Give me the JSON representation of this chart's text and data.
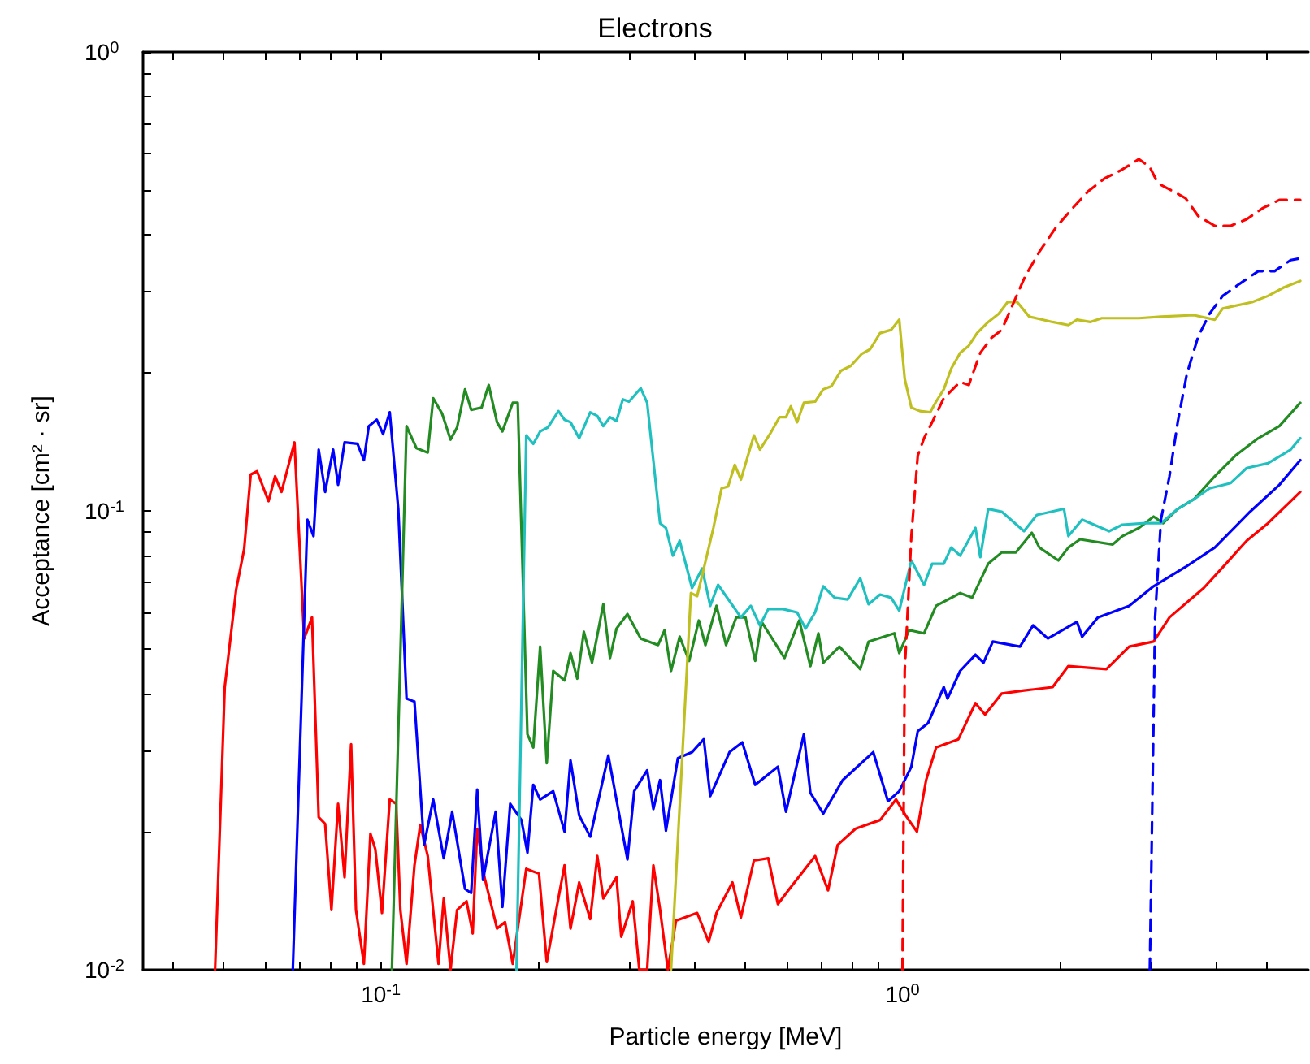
{
  "chart_data": {
    "type": "line",
    "title": "Electrons",
    "xlabel": "Particle energy [MeV]",
    "ylabel": "Acceptance [cm² · sr]",
    "log": "xy",
    "xlim": [
      0.035,
      6
    ],
    "ylim": [
      0.01,
      1
    ],
    "xticks": [
      {
        "value": 0.04,
        "label": null
      },
      {
        "value": 0.05,
        "label": null
      },
      {
        "value": 0.06,
        "label": null
      },
      {
        "value": 0.07,
        "label": null
      },
      {
        "value": 0.08,
        "label": null
      },
      {
        "value": 0.09,
        "label": null
      },
      {
        "value": 0.1,
        "label": "10$^{-1}$"
      },
      {
        "value": 0.2,
        "label": null
      },
      {
        "value": 0.3,
        "label": null
      },
      {
        "value": 0.4,
        "label": null
      },
      {
        "value": 0.5,
        "label": null
      },
      {
        "value": 0.6,
        "label": null
      },
      {
        "value": 0.7,
        "label": null
      },
      {
        "value": 0.8,
        "label": null
      },
      {
        "value": 0.9,
        "label": null
      },
      {
        "value": 1,
        "label": "10$^{0}$"
      },
      {
        "value": 2,
        "label": null
      },
      {
        "value": 3,
        "label": null
      },
      {
        "value": 4,
        "label": null
      },
      {
        "value": 5,
        "label": null
      }
    ],
    "yticks": [
      {
        "value": 0.01,
        "label": "10$^{-2}$"
      },
      {
        "value": 0.02,
        "label": null
      },
      {
        "value": 0.03,
        "label": null
      },
      {
        "value": 0.04,
        "label": null
      },
      {
        "value": 0.05,
        "label": null
      },
      {
        "value": 0.06,
        "label": null
      },
      {
        "value": 0.07,
        "label": null
      },
      {
        "value": 0.08,
        "label": null
      },
      {
        "value": 0.09,
        "label": null
      },
      {
        "value": 0.1,
        "label": "10$^{-1}$"
      },
      {
        "value": 0.2,
        "label": null
      },
      {
        "value": 0.3,
        "label": null
      },
      {
        "value": 0.4,
        "label": null
      },
      {
        "value": 0.5,
        "label": null
      },
      {
        "value": 0.6,
        "label": null
      },
      {
        "value": 0.7,
        "label": null
      },
      {
        "value": 0.8,
        "label": null
      },
      {
        "value": 0.9,
        "label": null
      },
      {
        "value": 1,
        "label": "10$^{0}$"
      }
    ],
    "series": [
      {
        "color": "#ff0000",
        "line_style": "solid",
        "x": [
          0.0481,
          0.0502,
          0.0528,
          0.0547,
          0.0563,
          0.0579,
          0.0609,
          0.0627,
          0.0645,
          0.0683,
          0.0713,
          0.0738,
          0.076,
          0.0782,
          0.0804,
          0.0828,
          0.0852,
          0.0877,
          0.0896,
          0.0928,
          0.0955,
          0.0976,
          0.1005,
          0.104,
          0.107,
          0.109,
          0.112,
          0.116,
          0.119,
          0.123,
          0.129,
          0.132,
          0.136,
          0.14,
          0.146,
          0.15,
          0.153,
          0.158,
          0.167,
          0.173,
          0.179,
          0.19,
          0.201,
          0.208,
          0.215,
          0.225,
          0.231,
          0.24,
          0.252,
          0.26,
          0.267,
          0.283,
          0.289,
          0.304,
          0.313,
          0.324,
          0.333,
          0.343,
          0.355,
          0.368,
          0.404,
          0.425,
          0.44,
          0.472,
          0.49,
          0.519,
          0.553,
          0.577,
          0.607,
          0.68,
          0.72,
          0.751,
          0.813,
          0.906,
          0.972,
          1.014,
          1.066,
          1.11,
          1.16,
          1.28,
          1.38,
          1.44,
          1.55,
          1.71,
          1.94,
          2.08,
          2.46,
          2.72,
          3.03,
          3.25,
          3.78,
          4.17,
          4.57,
          5.02,
          5.55,
          5.79
        ],
        "values": [
          0.01,
          0.0413,
          0.0674,
          0.0826,
          0.12,
          0.122,
          0.105,
          0.119,
          0.11,
          0.141,
          0.0527,
          0.0586,
          0.0215,
          0.0208,
          0.0135,
          0.023,
          0.0159,
          0.031,
          0.0135,
          0.0103,
          0.0198,
          0.0183,
          0.0133,
          0.0235,
          0.023,
          0.0135,
          0.0103,
          0.0169,
          0.0207,
          0.0177,
          0.0103,
          0.0143,
          0.01,
          0.0135,
          0.0141,
          0.012,
          0.0203,
          0.0159,
          0.0123,
          0.0127,
          0.0103,
          0.0166,
          0.0162,
          0.0104,
          0.0128,
          0.0169,
          0.0123,
          0.0155,
          0.0129,
          0.0177,
          0.0143,
          0.0159,
          0.0118,
          0.0141,
          0.01,
          0.01,
          0.0169,
          0.0135,
          0.01,
          0.0128,
          0.0133,
          0.0115,
          0.0133,
          0.0155,
          0.013,
          0.0173,
          0.0175,
          0.0139,
          0.015,
          0.0177,
          0.0149,
          0.0187,
          0.0203,
          0.0212,
          0.0235,
          0.0217,
          0.02,
          0.0259,
          0.0305,
          0.0318,
          0.0381,
          0.036,
          0.04,
          0.0406,
          0.0413,
          0.0459,
          0.0452,
          0.0506,
          0.0519,
          0.0586,
          0.0679,
          0.0767,
          0.0861,
          0.094,
          0.105,
          0.11
        ]
      },
      {
        "color": "#0000ff",
        "line_style": "solid",
        "x": [
          0.0678,
          0.0723,
          0.0743,
          0.076,
          0.0782,
          0.081,
          0.0828,
          0.0852,
          0.0902,
          0.0928,
          0.0948,
          0.0982,
          0.101,
          0.104,
          0.108,
          0.112,
          0.116,
          0.121,
          0.126,
          0.132,
          0.137,
          0.145,
          0.149,
          0.153,
          0.157,
          0.166,
          0.171,
          0.177,
          0.186,
          0.191,
          0.196,
          0.202,
          0.214,
          0.225,
          0.231,
          0.24,
          0.252,
          0.273,
          0.297,
          0.306,
          0.324,
          0.333,
          0.343,
          0.352,
          0.371,
          0.395,
          0.416,
          0.428,
          0.466,
          0.493,
          0.522,
          0.577,
          0.598,
          0.647,
          0.666,
          0.705,
          0.768,
          0.879,
          0.938,
          0.986,
          1.04,
          1.07,
          1.12,
          1.2,
          1.22,
          1.29,
          1.38,
          1.43,
          1.49,
          1.68,
          1.78,
          1.9,
          2.16,
          2.21,
          2.37,
          2.72,
          3.03,
          3.49,
          3.97,
          4.64,
          5.28,
          5.79
        ],
        "values": [
          0.01,
          0.0957,
          0.0881,
          0.136,
          0.11,
          0.136,
          0.114,
          0.141,
          0.14,
          0.129,
          0.153,
          0.158,
          0.147,
          0.164,
          0.101,
          0.039,
          0.0384,
          0.0187,
          0.0235,
          0.0175,
          0.0221,
          0.015,
          0.0147,
          0.0247,
          0.0157,
          0.0221,
          0.0137,
          0.023,
          0.0212,
          0.018,
          0.0253,
          0.0235,
          0.0245,
          0.02,
          0.0286,
          0.0217,
          0.0195,
          0.0293,
          0.0174,
          0.0245,
          0.0272,
          0.0224,
          0.0259,
          0.0201,
          0.0289,
          0.0298,
          0.0318,
          0.0239,
          0.0298,
          0.0313,
          0.0253,
          0.0277,
          0.0221,
          0.0326,
          0.0243,
          0.0219,
          0.0259,
          0.0298,
          0.0233,
          0.0245,
          0.0277,
          0.0331,
          0.0345,
          0.0413,
          0.039,
          0.0448,
          0.0486,
          0.0467,
          0.0519,
          0.0506,
          0.0563,
          0.0527,
          0.0573,
          0.0532,
          0.0586,
          0.0621,
          0.0685,
          0.0755,
          0.0832,
          0.0996,
          0.114,
          0.129
        ]
      },
      {
        "color": "#228b22",
        "line_style": "solid",
        "x": [
          0.105,
          0.112,
          0.117,
          0.123,
          0.126,
          0.131,
          0.136,
          0.14,
          0.145,
          0.149,
          0.156,
          0.161,
          0.167,
          0.171,
          0.179,
          0.183,
          0.191,
          0.196,
          0.202,
          0.208,
          0.214,
          0.225,
          0.231,
          0.238,
          0.245,
          0.254,
          0.267,
          0.275,
          0.283,
          0.297,
          0.315,
          0.34,
          0.35,
          0.36,
          0.374,
          0.39,
          0.407,
          0.419,
          0.44,
          0.459,
          0.48,
          0.5,
          0.522,
          0.537,
          0.594,
          0.634,
          0.666,
          0.69,
          0.705,
          0.757,
          0.83,
          0.861,
          0.965,
          0.986,
          1.03,
          1.1,
          1.16,
          1.29,
          1.36,
          1.46,
          1.55,
          1.65,
          1.77,
          1.83,
          1.99,
          2.08,
          2.19,
          2.53,
          2.64,
          2.84,
          3.03,
          3.16,
          3.37,
          3.62,
          3.97,
          4.35,
          4.81,
          5.28,
          5.79
        ],
        "values": [
          0.01,
          0.153,
          0.137,
          0.134,
          0.176,
          0.163,
          0.143,
          0.152,
          0.184,
          0.166,
          0.168,
          0.188,
          0.156,
          0.149,
          0.172,
          0.172,
          0.0326,
          0.0305,
          0.0506,
          0.0282,
          0.0448,
          0.0427,
          0.049,
          0.0431,
          0.0545,
          0.0467,
          0.0626,
          0.0478,
          0.0554,
          0.0596,
          0.0527,
          0.051,
          0.055,
          0.0448,
          0.0532,
          0.0471,
          0.0577,
          0.051,
          0.0621,
          0.051,
          0.0586,
          0.0586,
          0.0471,
          0.0573,
          0.0478,
          0.0577,
          0.0459,
          0.0541,
          0.0467,
          0.0506,
          0.0452,
          0.0519,
          0.0541,
          0.049,
          0.055,
          0.0541,
          0.0621,
          0.0662,
          0.0647,
          0.0767,
          0.0812,
          0.0812,
          0.0896,
          0.0832,
          0.078,
          0.0832,
          0.0867,
          0.0845,
          0.0881,
          0.0918,
          0.0972,
          0.094,
          0.101,
          0.106,
          0.119,
          0.132,
          0.144,
          0.153,
          0.172
        ]
      },
      {
        "color": "#20c0c0",
        "line_style": "solid",
        "x": [
          0.182,
          0.19,
          0.196,
          0.202,
          0.209,
          0.219,
          0.225,
          0.231,
          0.24,
          0.252,
          0.26,
          0.267,
          0.275,
          0.283,
          0.291,
          0.299,
          0.315,
          0.324,
          0.343,
          0.352,
          0.363,
          0.374,
          0.395,
          0.413,
          0.428,
          0.443,
          0.459,
          0.49,
          0.512,
          0.533,
          0.553,
          0.59,
          0.628,
          0.652,
          0.68,
          0.705,
          0.741,
          0.785,
          0.83,
          0.861,
          0.906,
          0.951,
          0.986,
          1.04,
          1.1,
          1.14,
          1.2,
          1.24,
          1.29,
          1.38,
          1.41,
          1.46,
          1.55,
          1.71,
          1.81,
          2.04,
          2.08,
          2.21,
          2.49,
          2.64,
          2.92,
          3.13,
          3.37,
          3.62,
          3.88,
          4.26,
          4.57,
          5.02,
          5.55,
          5.79
        ],
        "values": [
          0.01,
          0.146,
          0.14,
          0.149,
          0.152,
          0.165,
          0.158,
          0.156,
          0.144,
          0.164,
          0.161,
          0.153,
          0.16,
          0.157,
          0.175,
          0.173,
          0.185,
          0.172,
          0.094,
          0.0918,
          0.0799,
          0.0861,
          0.0679,
          0.0749,
          0.0621,
          0.069,
          0.0652,
          0.0586,
          0.0621,
          0.0563,
          0.0611,
          0.0611,
          0.0601,
          0.0554,
          0.0601,
          0.0685,
          0.0647,
          0.0641,
          0.0713,
          0.0626,
          0.0657,
          0.0647,
          0.0606,
          0.078,
          0.069,
          0.0767,
          0.0767,
          0.0832,
          0.0799,
          0.0918,
          0.0793,
          0.101,
          0.0996,
          0.0903,
          0.098,
          0.101,
          0.0881,
          0.0957,
          0.0903,
          0.0933,
          0.094,
          0.094,
          0.101,
          0.106,
          0.112,
          0.115,
          0.124,
          0.127,
          0.136,
          0.144
        ]
      },
      {
        "color": "#bfbf20",
        "line_style": "solid",
        "x": [
          0.36,
          0.393,
          0.404,
          0.416,
          0.434,
          0.45,
          0.463,
          0.477,
          0.49,
          0.519,
          0.533,
          0.557,
          0.581,
          0.598,
          0.611,
          0.628,
          0.647,
          0.68,
          0.705,
          0.731,
          0.762,
          0.796,
          0.836,
          0.867,
          0.906,
          0.951,
          0.986,
          1.01,
          1.04,
          1.08,
          1.13,
          1.16,
          1.2,
          1.24,
          1.29,
          1.34,
          1.39,
          1.46,
          1.53,
          1.59,
          1.66,
          1.75,
          1.94,
          2.08,
          2.16,
          2.29,
          2.41,
          2.84,
          3.13,
          3.62,
          3.97,
          4.11,
          4.68,
          5.02,
          5.39,
          5.79
        ],
        "values": [
          0.01,
          0.0662,
          0.0652,
          0.0749,
          0.0918,
          0.112,
          0.113,
          0.126,
          0.117,
          0.146,
          0.136,
          0.147,
          0.16,
          0.16,
          0.169,
          0.156,
          0.172,
          0.173,
          0.184,
          0.187,
          0.202,
          0.207,
          0.22,
          0.225,
          0.244,
          0.248,
          0.261,
          0.194,
          0.168,
          0.165,
          0.164,
          0.173,
          0.184,
          0.204,
          0.221,
          0.229,
          0.244,
          0.258,
          0.269,
          0.285,
          0.285,
          0.265,
          0.258,
          0.254,
          0.261,
          0.258,
          0.263,
          0.263,
          0.265,
          0.267,
          0.261,
          0.276,
          0.285,
          0.294,
          0.307,
          0.317
        ]
      },
      {
        "color": "#ff0000",
        "line_style": "dashed",
        "x": [
          1.0,
          1.01,
          1.04,
          1.07,
          1.1,
          1.14,
          1.2,
          1.29,
          1.34,
          1.41,
          1.48,
          1.55,
          1.65,
          1.72,
          1.83,
          1.97,
          2.12,
          2.27,
          2.44,
          2.62,
          2.84,
          2.98,
          3.09,
          3.27,
          3.49,
          3.69,
          3.97,
          4.26,
          4.57,
          4.91,
          5.28,
          5.79
        ],
        "values": [
          0.01,
          0.0448,
          0.0881,
          0.132,
          0.144,
          0.156,
          0.176,
          0.191,
          0.188,
          0.221,
          0.238,
          0.248,
          0.292,
          0.325,
          0.367,
          0.415,
          0.457,
          0.497,
          0.53,
          0.552,
          0.584,
          0.561,
          0.517,
          0.5,
          0.48,
          0.439,
          0.418,
          0.418,
          0.432,
          0.457,
          0.476,
          0.476
        ]
      },
      {
        "color": "#0000ff",
        "line_style": "dashed",
        "x": [
          2.98,
          3.05,
          3.13,
          3.25,
          3.37,
          3.51,
          3.69,
          3.88,
          4.11,
          4.42,
          4.81,
          5.17,
          5.55,
          5.79
        ],
        "values": [
          0.01,
          0.0586,
          0.0957,
          0.119,
          0.156,
          0.199,
          0.24,
          0.269,
          0.294,
          0.312,
          0.333,
          0.333,
          0.352,
          0.355
        ]
      }
    ]
  }
}
